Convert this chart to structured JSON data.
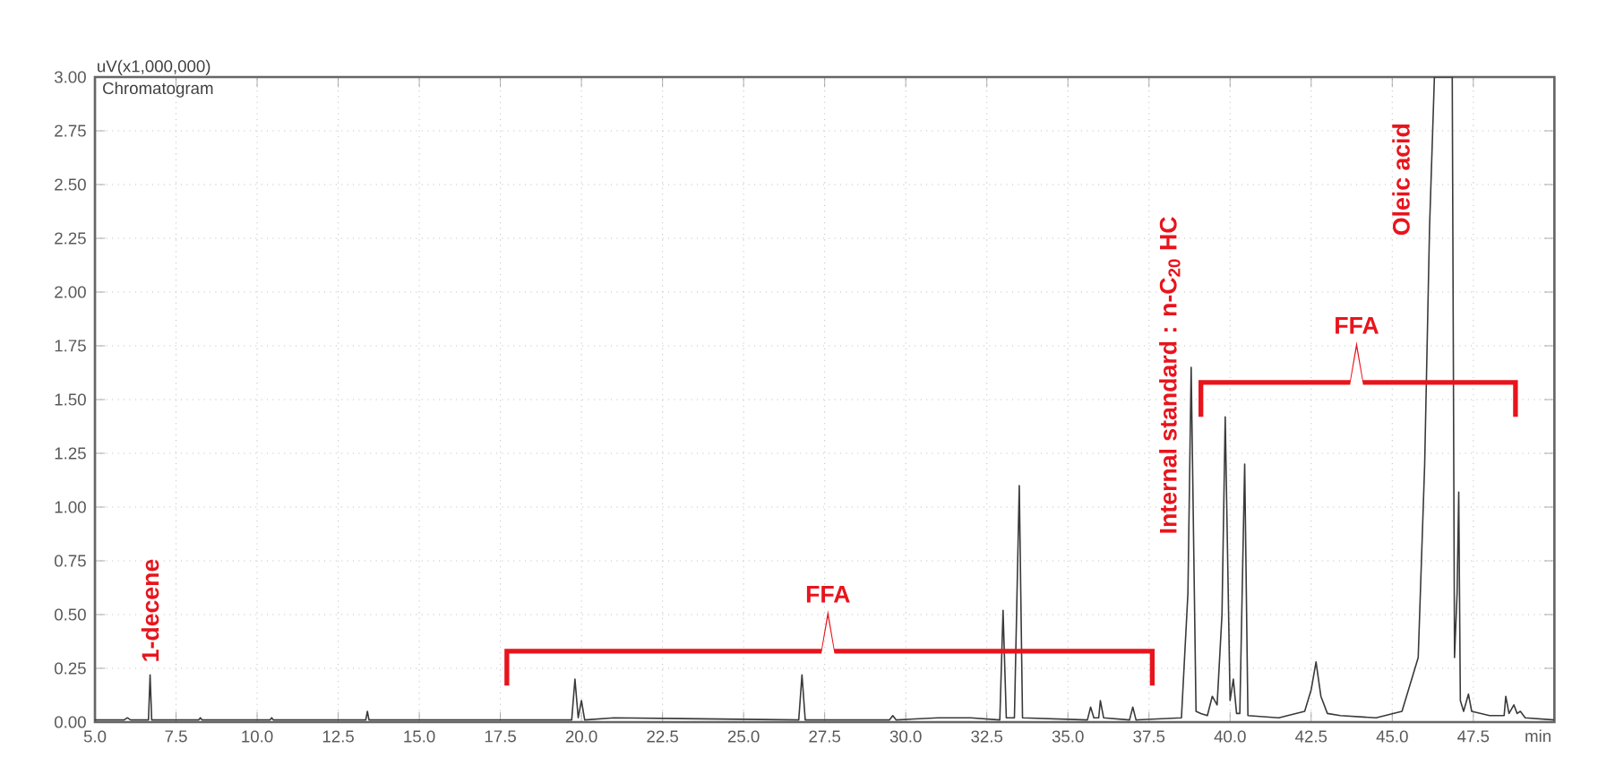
{
  "chart_data": {
    "type": "line",
    "title": "Chromatogram",
    "xlabel": "min",
    "ylabel": "uV(x1,000,000)",
    "annotations": [
      {
        "text": "1-decene",
        "x": 6.7,
        "y": 0.22
      },
      "FFA",
      {
        "text": "Internal standard : n-C$_{20}$ HC",
        "x": 38.8,
        "y": 1.65
      },
      "FFA",
      {
        "text": "Oleic acid",
        "x": 46.3,
        "y": 3.0
      }
    ],
    "series": [
      {
        "color": "#3a3a3a",
        "x": [
          5.0,
          5.9,
          6.0,
          6.1,
          6.65,
          6.7,
          6.75,
          8.2,
          8.25,
          8.3,
          10.4,
          10.45,
          10.5,
          13.35,
          13.4,
          13.45,
          19.7,
          19.8,
          19.9,
          20.0,
          20.1,
          21.0,
          26.7,
          26.8,
          26.9,
          29.5,
          29.6,
          29.7,
          31.0,
          32.0,
          32.9,
          33.0,
          33.1,
          33.35,
          33.5,
          33.6,
          35.6,
          35.7,
          35.8,
          35.95,
          36.0,
          36.1,
          36.9,
          37.0,
          37.1,
          38.5,
          38.7,
          38.8,
          38.95,
          39.1,
          39.3,
          39.45,
          39.6,
          39.75,
          39.85,
          40.0,
          40.1,
          40.2,
          40.3,
          40.45,
          40.55,
          41.5,
          42.3,
          42.5,
          42.65,
          42.8,
          43.0,
          43.4,
          44.5,
          45.3,
          45.8,
          46.0,
          46.15,
          46.3,
          46.85,
          46.92,
          47.0,
          47.05,
          47.1,
          47.2,
          47.35,
          47.45,
          48.0,
          48.45,
          48.5,
          48.6,
          48.75,
          48.85,
          48.95,
          49.1,
          50.0
        ],
        "values": [
          0.01,
          0.01,
          0.02,
          0.01,
          0.01,
          0.22,
          0.01,
          0.01,
          0.02,
          0.01,
          0.01,
          0.02,
          0.01,
          0.01,
          0.05,
          0.01,
          0.01,
          0.2,
          0.02,
          0.1,
          0.01,
          0.02,
          0.01,
          0.22,
          0.01,
          0.01,
          0.03,
          0.01,
          0.02,
          0.02,
          0.01,
          0.52,
          0.02,
          0.02,
          1.1,
          0.02,
          0.01,
          0.07,
          0.02,
          0.02,
          0.1,
          0.02,
          0.01,
          0.07,
          0.01,
          0.02,
          0.6,
          1.65,
          0.05,
          0.04,
          0.03,
          0.12,
          0.08,
          0.5,
          1.42,
          0.1,
          0.2,
          0.04,
          0.04,
          1.2,
          0.03,
          0.02,
          0.05,
          0.15,
          0.28,
          0.12,
          0.04,
          0.03,
          0.02,
          0.05,
          0.3,
          1.2,
          2.3,
          3.0,
          3.0,
          0.3,
          0.6,
          1.07,
          0.1,
          0.05,
          0.13,
          0.05,
          0.03,
          0.03,
          0.12,
          0.04,
          0.08,
          0.04,
          0.05,
          0.02,
          0.01
        ]
      }
    ],
    "xlim": [
      5,
      50
    ],
    "xticks": [
      {
        "value": 5,
        "label": "5.0"
      },
      7.5,
      {
        "value": 10,
        "label": "10.0"
      },
      12.5,
      {
        "value": 15,
        "label": "15.0"
      },
      17.5,
      {
        "value": 20,
        "label": "20.0"
      },
      22.5,
      {
        "value": 25,
        "label": "25.0"
      },
      27.5,
      {
        "value": 30,
        "label": "30.0"
      },
      32.5,
      {
        "value": 35,
        "label": "35.0"
      },
      37.5,
      {
        "value": 40,
        "label": "40.0"
      },
      42.5,
      {
        "value": 45,
        "label": "45.0"
      },
      47.5
    ],
    "ylim": [
      0,
      3
    ],
    "yticks": [
      {
        "value": 0,
        "label": "0.00"
      },
      {
        "value": 0.25,
        "label": "0.25"
      },
      {
        "value": 0.5,
        "label": "0.50"
      },
      {
        "value": 0.75,
        "label": "0.75"
      },
      {
        "value": 1,
        "label": "1.00"
      },
      {
        "value": 1.25,
        "label": "1.25"
      },
      {
        "value": 1.5,
        "label": "1.50"
      },
      {
        "value": 1.75,
        "label": "1.75"
      },
      {
        "value": 2,
        "label": "2.00"
      },
      {
        "value": 2.25,
        "label": "2.25"
      },
      {
        "value": 2.5,
        "label": "2.50"
      },
      {
        "value": 2.75,
        "label": "2.75"
      },
      {
        "value": 3,
        "label": "3.00"
      }
    ],
    "grid": true
  }
}
